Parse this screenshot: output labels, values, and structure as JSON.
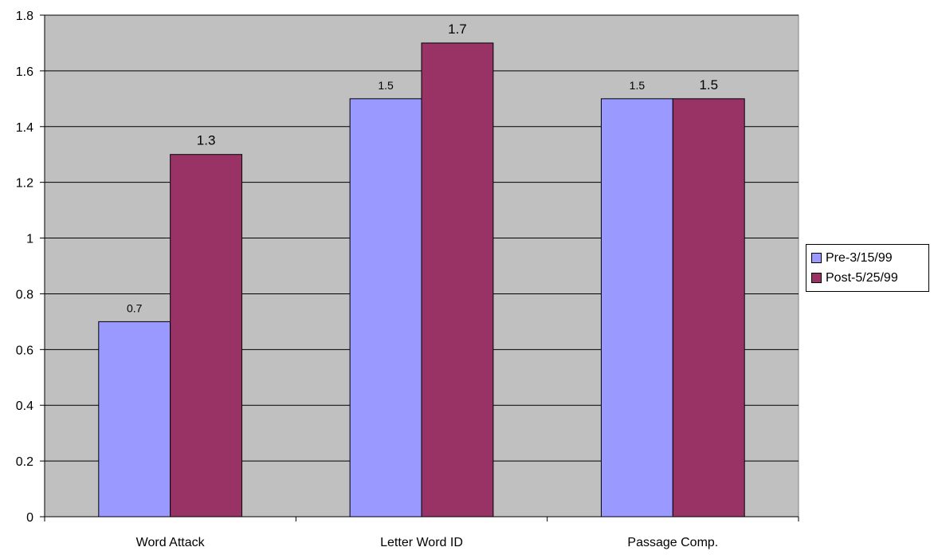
{
  "chart_data": {
    "type": "bar",
    "categories": [
      "Word Attack",
      "Letter Word ID",
      "Passage Comp."
    ],
    "series": [
      {
        "name": "Pre-3/15/99",
        "values": [
          0.7,
          1.5,
          1.5
        ],
        "labels": [
          "0.7",
          "1.5",
          "1.5"
        ],
        "color": "#9999ff"
      },
      {
        "name": "Post-5/25/99",
        "values": [
          1.3,
          1.7,
          1.5
        ],
        "labels": [
          "1.3",
          "1.7",
          "1.5"
        ],
        "color": "#993366"
      }
    ],
    "ylim": [
      0,
      1.8
    ],
    "yticks": [
      "0",
      "0.2",
      "0.4",
      "0.6",
      "0.8",
      "1",
      "1.2",
      "1.4",
      "1.6",
      "1.8"
    ],
    "ytick_values": [
      0,
      0.2,
      0.4,
      0.6,
      0.8,
      1.0,
      1.2,
      1.4,
      1.6,
      1.8
    ],
    "plot_background": "#c0c0c0",
    "grid": true,
    "legend_position": "right"
  }
}
